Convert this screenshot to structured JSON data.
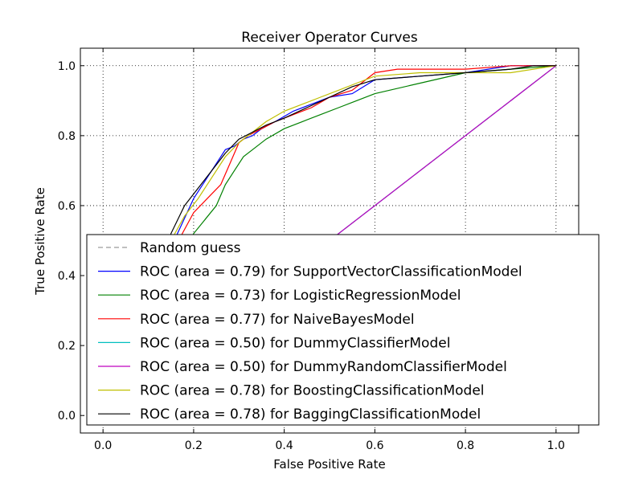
{
  "chart_data": {
    "type": "line",
    "title": "Receiver Operator Curves",
    "xlabel": "False Positive Rate",
    "ylabel": "True Positive Rate",
    "xlim": [
      -0.05,
      1.05
    ],
    "ylim": [
      -0.05,
      1.05
    ],
    "xticks": [
      0.0,
      0.2,
      0.4,
      0.6,
      0.8,
      1.0
    ],
    "yticks": [
      0.0,
      0.2,
      0.4,
      0.6,
      0.8,
      1.0
    ],
    "xtick_labels": [
      "0.0",
      "0.2",
      "0.4",
      "0.6",
      "0.8",
      "1.0"
    ],
    "ytick_labels": [
      "0.0",
      "0.2",
      "0.4",
      "0.6",
      "0.8",
      "1.0"
    ],
    "grid": true,
    "legend_position": "lower-right",
    "series": [
      {
        "name": "Random guess",
        "color": "#999999",
        "dashed": true,
        "x": [
          0.0,
          1.0
        ],
        "y": [
          0.0,
          1.0
        ]
      },
      {
        "name": "ROC (area = 0.79) for SupportVectorClassificationModel",
        "color": "#0000ff",
        "x": [
          0.0,
          0.05,
          0.1,
          0.15,
          0.2,
          0.23,
          0.25,
          0.27,
          0.29,
          0.31,
          0.33,
          0.35,
          0.38,
          0.42,
          0.46,
          0.5,
          0.55,
          0.6,
          0.7,
          0.8,
          0.9,
          1.0
        ],
        "y": [
          0.0,
          0.12,
          0.3,
          0.48,
          0.62,
          0.68,
          0.72,
          0.76,
          0.77,
          0.79,
          0.8,
          0.82,
          0.84,
          0.87,
          0.89,
          0.91,
          0.92,
          0.96,
          0.97,
          0.98,
          1.0,
          1.0
        ]
      },
      {
        "name": "ROC (area = 0.73) for LogisticRegressionModel",
        "color": "#008000",
        "x": [
          0.0,
          0.05,
          0.1,
          0.15,
          0.2,
          0.25,
          0.27,
          0.29,
          0.31,
          0.33,
          0.36,
          0.4,
          0.44,
          0.48,
          0.52,
          0.56,
          0.6,
          0.7,
          0.8,
          0.9,
          1.0
        ],
        "y": [
          0.0,
          0.1,
          0.25,
          0.4,
          0.52,
          0.6,
          0.66,
          0.7,
          0.74,
          0.76,
          0.79,
          0.82,
          0.84,
          0.86,
          0.88,
          0.9,
          0.92,
          0.95,
          0.98,
          0.99,
          1.0
        ]
      },
      {
        "name": "ROC (area = 0.77) for NaiveBayesModel",
        "color": "#ff0000",
        "x": [
          0.0,
          0.05,
          0.1,
          0.15,
          0.2,
          0.23,
          0.26,
          0.28,
          0.3,
          0.32,
          0.35,
          0.38,
          0.42,
          0.46,
          0.5,
          0.55,
          0.6,
          0.65,
          0.7,
          0.8,
          0.9,
          1.0
        ],
        "y": [
          0.0,
          0.12,
          0.28,
          0.46,
          0.58,
          0.62,
          0.66,
          0.72,
          0.78,
          0.8,
          0.82,
          0.84,
          0.86,
          0.88,
          0.91,
          0.93,
          0.98,
          0.99,
          0.99,
          0.99,
          1.0,
          1.0
        ]
      },
      {
        "name": "ROC (area = 0.50) for DummyClassifierModel",
        "color": "#00bfbf",
        "x": [
          0.0,
          1.0
        ],
        "y": [
          0.0,
          1.0
        ]
      },
      {
        "name": "ROC (area = 0.50) for DummyRandomClassifierModel",
        "color": "#bf00bf",
        "x": [
          0.0,
          1.0
        ],
        "y": [
          0.0,
          1.0
        ]
      },
      {
        "name": "ROC (area = 0.78) for BoostingClassificationModel",
        "color": "#bfbf00",
        "x": [
          0.0,
          0.05,
          0.1,
          0.15,
          0.18,
          0.21,
          0.24,
          0.27,
          0.3,
          0.33,
          0.36,
          0.4,
          0.44,
          0.48,
          0.52,
          0.56,
          0.6,
          0.7,
          0.8,
          0.9,
          1.0
        ],
        "y": [
          0.0,
          0.12,
          0.3,
          0.5,
          0.57,
          0.62,
          0.68,
          0.74,
          0.78,
          0.81,
          0.84,
          0.87,
          0.89,
          0.91,
          0.93,
          0.95,
          0.97,
          0.98,
          0.98,
          0.98,
          1.0
        ]
      },
      {
        "name": "ROC (area = 0.78) for BaggingClassificationModel",
        "color": "#000000",
        "x": [
          0.0,
          0.05,
          0.1,
          0.15,
          0.18,
          0.21,
          0.24,
          0.27,
          0.3,
          0.33,
          0.36,
          0.4,
          0.45,
          0.5,
          0.55,
          0.6,
          0.7,
          0.8,
          0.9,
          0.95,
          1.0
        ],
        "y": [
          0.0,
          0.12,
          0.3,
          0.52,
          0.6,
          0.65,
          0.7,
          0.75,
          0.79,
          0.81,
          0.83,
          0.85,
          0.88,
          0.91,
          0.94,
          0.96,
          0.97,
          0.98,
          0.99,
          1.0,
          1.0
        ]
      }
    ]
  }
}
